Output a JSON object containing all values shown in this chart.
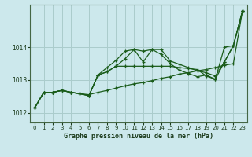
{
  "background_color": "#cce8ec",
  "grid_color": "#aacccc",
  "line_color": "#1a5c1a",
  "title": "Graphe pression niveau de la mer (hPa)",
  "xlim": [
    -0.5,
    23.5
  ],
  "ylim": [
    1011.7,
    1015.3
  ],
  "yticks": [
    1012,
    1013,
    1014
  ],
  "xticks": [
    0,
    1,
    2,
    3,
    4,
    5,
    6,
    7,
    8,
    9,
    10,
    11,
    12,
    13,
    14,
    15,
    16,
    17,
    18,
    19,
    20,
    21,
    22,
    23
  ],
  "series1": [
    1012.15,
    1012.62,
    1012.62,
    1012.68,
    1012.62,
    1012.58,
    1012.55,
    1012.62,
    1012.68,
    1012.75,
    1012.82,
    1012.88,
    1012.92,
    1012.98,
    1013.05,
    1013.1,
    1013.18,
    1013.22,
    1013.28,
    1013.32,
    1013.38,
    1013.45,
    1013.5,
    1015.1
  ],
  "series2": [
    1012.15,
    1012.62,
    1012.62,
    1012.68,
    1012.62,
    1012.58,
    1012.52,
    1013.15,
    1013.38,
    1013.6,
    1013.88,
    1013.93,
    1013.88,
    1013.93,
    1013.78,
    1013.5,
    1013.3,
    1013.2,
    1013.1,
    1013.15,
    1013.02,
    1014.0,
    1014.05,
    1015.1
  ],
  "series3": [
    1012.15,
    1012.62,
    1012.62,
    1012.68,
    1012.62,
    1012.58,
    1012.52,
    1013.15,
    1013.25,
    1013.42,
    1013.65,
    1013.93,
    1013.55,
    1013.93,
    1013.93,
    1013.58,
    1013.48,
    1013.38,
    1013.28,
    1013.22,
    1013.12,
    1013.55,
    1014.05,
    1015.1
  ],
  "series4": [
    1012.15,
    1012.62,
    1012.62,
    1012.68,
    1012.62,
    1012.58,
    1012.52,
    1013.15,
    1013.25,
    1013.42,
    1013.42,
    1013.42,
    1013.42,
    1013.42,
    1013.42,
    1013.42,
    1013.38,
    1013.35,
    1013.32,
    1013.12,
    1013.02,
    1013.55,
    1014.05,
    1015.1
  ],
  "marker": "+"
}
